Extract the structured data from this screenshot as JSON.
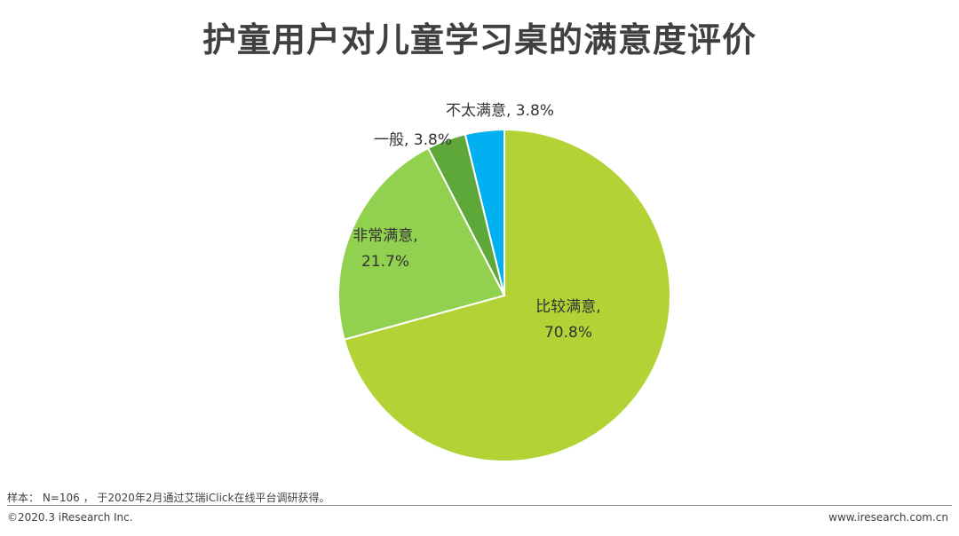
{
  "chart_data": {
    "type": "pie",
    "title": "护童用户对儿童学习桌的满意度评价",
    "slices": [
      {
        "label": "比较满意",
        "value": 70.8,
        "value_label": "70.8%",
        "color": "#b2d235"
      },
      {
        "label": "非常满意",
        "value": 21.7,
        "value_label": "21.7%",
        "color": "#92d050"
      },
      {
        "label": "一般",
        "value": 3.8,
        "value_label": "3.8%",
        "color": "#5ea83a"
      },
      {
        "label": "不太满意",
        "value": 3.8,
        "value_label": "3.8%",
        "color": "#00b0f0"
      }
    ]
  },
  "footer": {
    "note": "样本： N=106 ， 于2020年2月通过艾瑞iClick在线平台调研获得。",
    "copyright": "©2020.3 iResearch Inc.",
    "url": "www.iresearch.com.cn"
  }
}
